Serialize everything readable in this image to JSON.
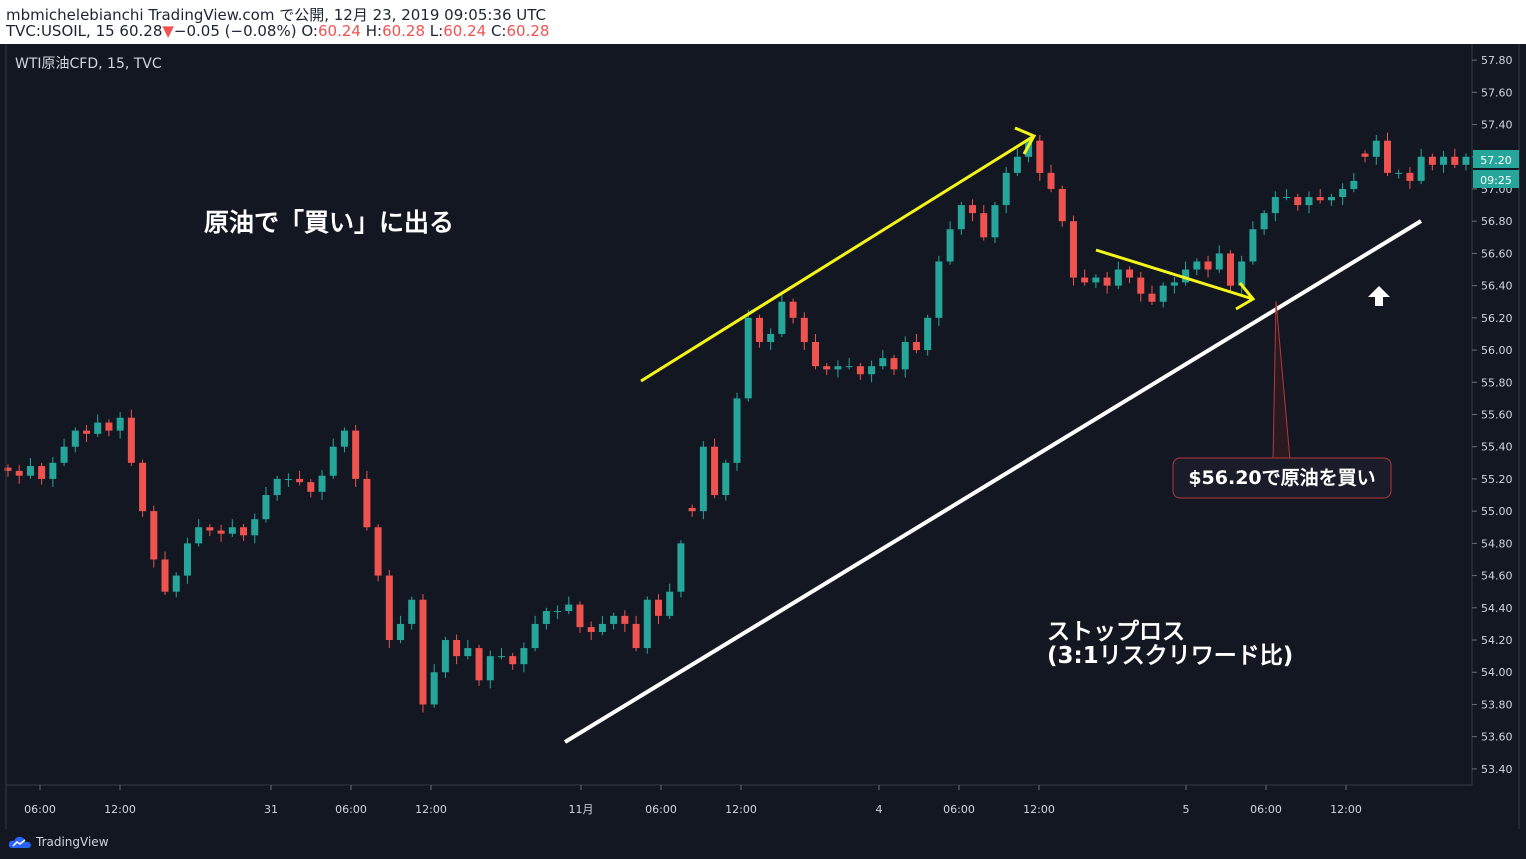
{
  "header": {
    "publish_line": "mbmichelebianchi TradingView.com で公開, 12月 23, 2019 09:05:36 UTC",
    "symbol_prefix": "TVC:USOIL, 15 60.28",
    "change_arrow": "▼",
    "change": "−0.05 (−0.08%)",
    "o_label": "O:",
    "o_value": "60.24",
    "h_label": "H:",
    "h_value": "60.28",
    "l_label": "L:",
    "l_value": "60.24",
    "c_label": "C:",
    "c_value": "60.28"
  },
  "footer": {
    "brand": "TradingView"
  },
  "colors": {
    "background": "#131722",
    "up": "#26a69a",
    "down": "#ef5350",
    "annotation_yellow": "#f5f51a",
    "trendline": "#ffffff",
    "callout_border": "#b2393b",
    "price_badge": "#26a69a"
  },
  "chart_data": {
    "type": "candlestick",
    "title": "WTI原油CFD, 15, TVC",
    "xlabel": "",
    "ylabel": "",
    "ylim": [
      53.3,
      57.9
    ],
    "y_ticks": [
      "57.80",
      "57.60",
      "57.40",
      "57.20",
      "57.00",
      "56.80",
      "56.60",
      "56.40",
      "56.20",
      "56.00",
      "55.80",
      "55.60",
      "55.40",
      "55.20",
      "55.00",
      "54.80",
      "54.60",
      "54.40",
      "54.20",
      "54.00",
      "53.80",
      "53.60",
      "53.40"
    ],
    "x_ticks": [
      "06:00",
      "12:00",
      "31",
      "06:00",
      "12:00",
      "11月",
      "06:00",
      "12:00",
      "4",
      "06:00",
      "12:00",
      "5",
      "06:00",
      "12:00"
    ],
    "price_badge": {
      "price": "57.20",
      "countdown": "09:25"
    },
    "series": [
      {
        "x": [
          0,
          1,
          2,
          3,
          4,
          5,
          6,
          7,
          8,
          9,
          10,
          11,
          12,
          13,
          14,
          15,
          16,
          17,
          18,
          19,
          20,
          21,
          22,
          23,
          24,
          25,
          26,
          27,
          28,
          29,
          30,
          31,
          32,
          33,
          34,
          35,
          36,
          37,
          38,
          39,
          40,
          41,
          42,
          43,
          44,
          45,
          46,
          47,
          48,
          49,
          50,
          51,
          52,
          53,
          54,
          55,
          56,
          57,
          58,
          59,
          60
        ],
        "y": [
          55.25,
          55.22,
          55.28,
          55.2,
          55.3,
          55.4,
          55.5,
          55.48,
          55.55,
          55.5,
          55.58,
          55.3,
          55.0,
          54.7,
          54.5,
          54.6,
          54.8,
          54.9,
          54.88,
          54.86,
          54.9,
          54.85,
          54.95,
          55.1,
          55.2,
          55.2,
          55.18,
          55.12,
          55.22,
          55.4,
          55.5,
          55.2,
          54.9,
          54.6,
          54.2,
          54.3,
          54.45,
          53.8,
          54.0,
          54.2,
          54.1,
          54.15,
          53.95,
          54.1,
          54.1,
          54.05,
          54.15,
          54.3,
          54.38,
          54.38,
          54.42,
          54.28,
          54.25,
          54.3,
          54.35,
          54.3,
          54.15,
          54.45,
          54.35,
          54.5,
          54.8
        ]
      },
      {
        "x": [
          61,
          62,
          63,
          64,
          65,
          66,
          67,
          68,
          69,
          70,
          71,
          72,
          73,
          74,
          75,
          76,
          77,
          78,
          79,
          80,
          81,
          82,
          83,
          84,
          85,
          86,
          87,
          88,
          89,
          90,
          91,
          92,
          93,
          94,
          95,
          96,
          97,
          98,
          99,
          100,
          101,
          102,
          103,
          104,
          105,
          106,
          107,
          108,
          109,
          110,
          111,
          112,
          113,
          114,
          115,
          116,
          117,
          118,
          119,
          120
        ],
        "y": [
          55.0,
          55.4,
          55.1,
          55.3,
          55.7,
          56.2,
          56.05,
          56.1,
          56.3,
          56.2,
          56.05,
          55.9,
          55.88,
          55.9,
          55.9,
          55.85,
          55.9,
          55.95,
          55.88,
          56.05,
          56.0,
          56.2,
          56.55,
          56.75,
          56.9,
          56.85,
          56.7,
          56.9,
          57.1,
          57.2,
          57.3,
          57.1,
          57.0,
          56.8,
          56.45,
          56.42,
          56.45,
          56.4,
          56.5,
          56.45,
          56.35,
          56.3,
          56.4,
          56.42,
          56.5,
          56.55,
          56.5,
          56.6,
          56.4,
          56.55,
          56.75,
          56.85,
          56.95,
          56.95,
          56.9,
          56.95,
          56.93,
          56.95,
          57.0,
          57.05
        ]
      },
      {
        "x": [
          121,
          122,
          123,
          124,
          125,
          126,
          127,
          128,
          129,
          130
        ],
        "y": [
          57.2,
          57.3,
          57.1,
          57.1,
          57.05,
          57.2,
          57.15,
          57.2,
          57.15,
          57.2
        ]
      }
    ],
    "annotations": [
      {
        "type": "text",
        "text": "原油で「買い」に出る"
      },
      {
        "type": "text",
        "text": "ストップロス"
      },
      {
        "type": "text",
        "text": "(3:1リスクリワード比)"
      },
      {
        "type": "callout",
        "text": "$56.20で原油を買い"
      },
      {
        "type": "arrow-up",
        "text": ""
      }
    ]
  }
}
